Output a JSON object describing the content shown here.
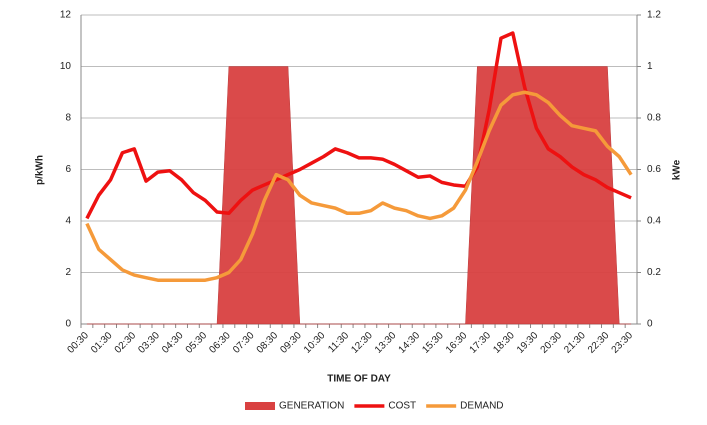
{
  "chart_data": {
    "type": "line",
    "categories": [
      "00:30",
      null,
      "01:30",
      null,
      "02:30",
      null,
      "03:30",
      null,
      "04:30",
      null,
      "05:30",
      null,
      "06:30",
      null,
      "07:30",
      null,
      "08:30",
      null,
      "09:30",
      null,
      "10:30",
      null,
      "11:30",
      null,
      "12:30",
      null,
      "13:30",
      null,
      "14:30",
      null,
      "15:30",
      null,
      "16:30",
      null,
      "17:30",
      null,
      "18:30",
      null,
      "19:30",
      null,
      "20:30",
      null,
      "21:30",
      null,
      "22:30",
      null,
      "23:30"
    ],
    "series": [
      {
        "name": "GENERATION",
        "type": "area",
        "axis": "y2",
        "color": "#d94141",
        "values": [
          0,
          0,
          0,
          0,
          0,
          0,
          0,
          0,
          0,
          0,
          0,
          0,
          1,
          1,
          1,
          1,
          1,
          1,
          0,
          0,
          0,
          0,
          0,
          0,
          0,
          0,
          0,
          0,
          0,
          0,
          0,
          0,
          0,
          1,
          1,
          1,
          1,
          1,
          1,
          1,
          1,
          1,
          1,
          1,
          1,
          0,
          0
        ]
      },
      {
        "name": "COST",
        "type": "line",
        "color": "#ee1111",
        "values": [
          4.1,
          5.0,
          5.6,
          6.65,
          6.8,
          5.55,
          5.9,
          5.95,
          5.6,
          5.1,
          4.8,
          4.35,
          4.3,
          4.8,
          5.2,
          5.4,
          5.6,
          5.8,
          6.0,
          6.25,
          6.5,
          6.8,
          6.65,
          6.45,
          6.45,
          6.4,
          6.2,
          5.95,
          5.7,
          5.75,
          5.5,
          5.4,
          5.35,
          6.1,
          8.3,
          11.1,
          11.3,
          9.2,
          7.6,
          6.8,
          6.5,
          6.1,
          5.8,
          5.6,
          5.3,
          5.1,
          4.9
        ]
      },
      {
        "name": "DEMAND",
        "type": "line",
        "axis": "y2",
        "color": "#f59a3a",
        "values": [
          0.39,
          0.29,
          0.25,
          0.21,
          0.19,
          0.18,
          0.17,
          0.17,
          0.17,
          0.17,
          0.17,
          0.18,
          0.2,
          0.25,
          0.35,
          0.48,
          0.58,
          0.56,
          0.5,
          0.47,
          0.46,
          0.45,
          0.43,
          0.43,
          0.44,
          0.47,
          0.45,
          0.44,
          0.42,
          0.41,
          0.42,
          0.45,
          0.52,
          0.63,
          0.75,
          0.85,
          0.89,
          0.9,
          0.89,
          0.86,
          0.81,
          0.77,
          0.76,
          0.75,
          0.69,
          0.65,
          0.58
        ]
      }
    ],
    "ylabel": "p/kWh",
    "y2label": "kWe",
    "xlabel": "TIME OF DAY",
    "ylim": [
      0,
      12
    ],
    "yticks": [
      0,
      2,
      4,
      6,
      8,
      10,
      12
    ],
    "y2lim": [
      0,
      1.2
    ],
    "y2ticks": [
      0,
      0.2,
      0.4,
      0.6,
      0.8,
      1,
      1.2
    ],
    "grid": true,
    "legend": "bottom"
  }
}
